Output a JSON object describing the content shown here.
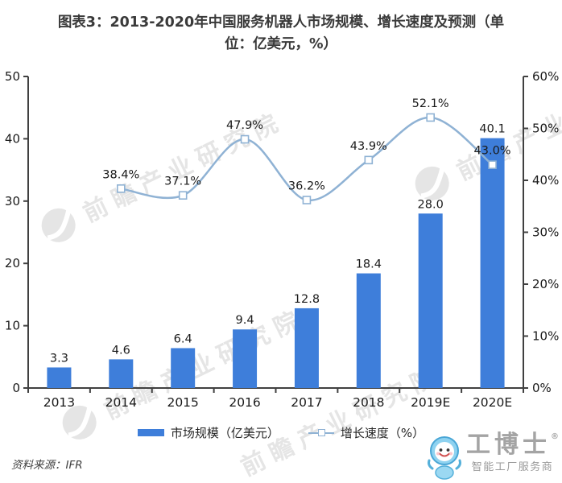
{
  "title": "图表3：2013-2020年中国服务机器人市场规模、增长速度及预测（单位：亿美元，%）",
  "source": "资料来源：IFR",
  "watermark": {
    "text": "前瞻产业研究院"
  },
  "brand": {
    "name": "工博士",
    "registered": "®",
    "tagline": "智能工厂服务商"
  },
  "legend": {
    "bar_label": "市场规模（亿美元）",
    "line_label": "增长速度（%）"
  },
  "colors": {
    "bar": "#3E7EDA",
    "line": "#8FB2D4",
    "axis": "#404040",
    "label": "#1a1a1a"
  },
  "chart_data": {
    "type": "combo",
    "title": "图表3：2013-2020年中国服务机器人市场规模、增长速度及预测（单位：亿美元，%）",
    "categories": [
      "2013",
      "2014",
      "2015",
      "2016",
      "2017",
      "2018",
      "2019E",
      "2020E"
    ],
    "series": [
      {
        "name": "市场规模（亿美元）",
        "type": "bar",
        "axis": "left",
        "values": [
          3.3,
          4.6,
          6.4,
          9.4,
          12.8,
          18.4,
          28.0,
          40.1
        ],
        "labels": [
          "3.3",
          "4.6",
          "6.4",
          "9.4",
          "12.8",
          "18.4",
          "28.0",
          "40.1"
        ]
      },
      {
        "name": "增长速度（%）",
        "type": "line",
        "axis": "right",
        "values": [
          null,
          38.4,
          37.1,
          47.9,
          36.2,
          43.9,
          52.1,
          43.0
        ],
        "labels": [
          null,
          "38.4%",
          "37.1%",
          "47.9%",
          "36.2%",
          "43.9%",
          "52.1%",
          "43.0%"
        ]
      }
    ],
    "left_axis": {
      "min": 0,
      "max": 50,
      "tick_step": 10,
      "tick_labels": [
        "0",
        "10",
        "20",
        "30",
        "40",
        "50"
      ],
      "unit": "亿美元"
    },
    "right_axis": {
      "min": 0,
      "max": 60,
      "tick_step": 10,
      "tick_labels": [
        "0%",
        "10%",
        "20%",
        "30%",
        "40%",
        "50%",
        "60%"
      ],
      "unit": "%"
    },
    "grid": false,
    "legend_position": "bottom"
  }
}
